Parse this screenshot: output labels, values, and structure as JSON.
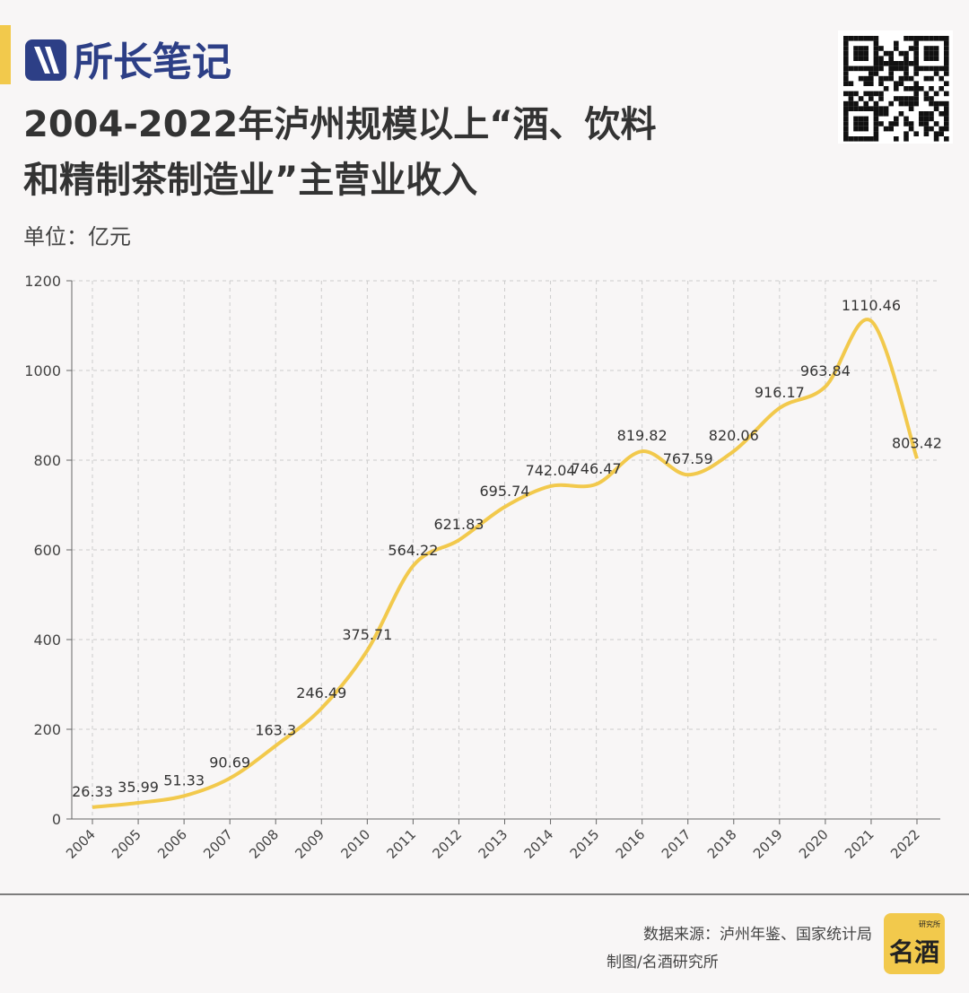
{
  "brand": "所长笔记",
  "chart_data": {
    "type": "line",
    "title": [
      "2004-2022年泸州规模以上“酒、饮料",
      "和精制茶制造业”主营业收入"
    ],
    "unit": "单位：亿元",
    "categories": [
      "2004",
      "2005",
      "2006",
      "2007",
      "2008",
      "2009",
      "2010",
      "2011",
      "2012",
      "2013",
      "2014",
      "2015",
      "2016",
      "2017",
      "2018",
      "2019",
      "2020",
      "2021",
      "2022"
    ],
    "series": [
      {
        "color": "#f2c94c",
        "values": [
          26.33,
          35.99,
          51.33,
          90.69,
          163.3,
          246.49,
          375.71,
          564.22,
          621.83,
          695.74,
          742.04,
          746.47,
          819.82,
          767.59,
          820.06,
          916.17,
          963.84,
          1110.46,
          803.42
        ]
      }
    ],
    "ylim": [
      0,
      1200
    ],
    "yticks": [
      0,
      200,
      400,
      600,
      800,
      1000,
      1200
    ],
    "grid": true
  },
  "footer": {
    "source": "数据来源：泸州年鉴、国家统计局",
    "credit": "制图/名酒研究所"
  },
  "logo": {
    "main": "名酒",
    "sub": "研究所"
  }
}
